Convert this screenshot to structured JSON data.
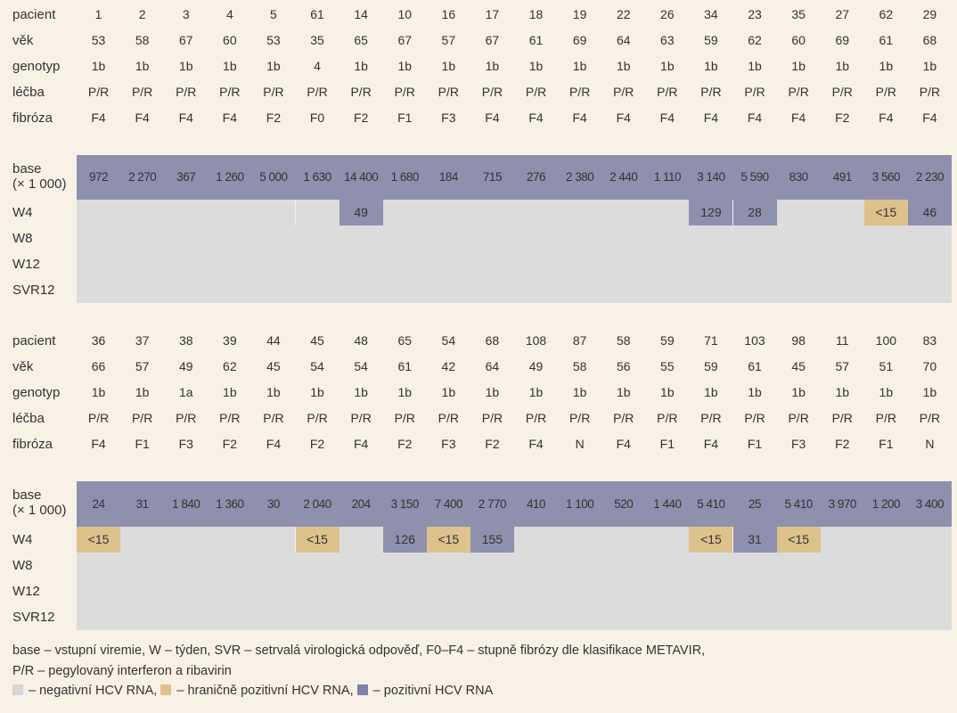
{
  "row_labels": {
    "pacient": "pacient",
    "vek": "věk",
    "genotyp": "genotyp",
    "lecba": "léčba",
    "fibroza": "fibróza",
    "base_1": "base",
    "base_2": "(× 1 000)",
    "w4": "W4",
    "w8": "W8",
    "w12": "W12",
    "svr12": "SVR12"
  },
  "blocks": [
    {
      "pacient": [
        "1",
        "2",
        "3",
        "4",
        "5",
        "61",
        "14",
        "10",
        "16",
        "17",
        "18",
        "19",
        "22",
        "26",
        "34",
        "23",
        "35",
        "27",
        "62",
        "29"
      ],
      "vek": [
        "53",
        "58",
        "67",
        "60",
        "53",
        "35",
        "65",
        "67",
        "57",
        "67",
        "61",
        "69",
        "64",
        "63",
        "59",
        "62",
        "60",
        "69",
        "61",
        "68"
      ],
      "genotyp": [
        "1b",
        "1b",
        "1b",
        "1b",
        "1b",
        "4",
        "1b",
        "1b",
        "1b",
        "1b",
        "1b",
        "1b",
        "1b",
        "1b",
        "1b",
        "1b",
        "1b",
        "1b",
        "1b",
        "1b"
      ],
      "lecba": [
        "P/R",
        "P/R",
        "P/R",
        "P/R",
        "P/R",
        "P/R",
        "P/R",
        "P/R",
        "P/R",
        "P/R",
        "P/R",
        "P/R",
        "P/R",
        "P/R",
        "P/R",
        "P/R",
        "P/R",
        "P/R",
        "P/R",
        "P/R"
      ],
      "fibroza": [
        "F4",
        "F4",
        "F4",
        "F4",
        "F2",
        "F0",
        "F2",
        "F1",
        "F3",
        "F4",
        "F4",
        "F4",
        "F4",
        "F4",
        "F4",
        "F4",
        "F4",
        "F2",
        "F4",
        "F4"
      ],
      "base": [
        "972",
        "2 270",
        "367",
        "1 260",
        "5 000",
        "1 630",
        "14 400",
        "1 680",
        "184",
        "715",
        "276",
        "2 380",
        "2 440",
        "1 110",
        "3 140",
        "5 590",
        "830",
        "491",
        "3 560",
        "2 230"
      ],
      "w4": [
        {
          "s": "neg",
          "v": ""
        },
        {
          "s": "neg",
          "v": ""
        },
        {
          "s": "neg",
          "v": ""
        },
        {
          "s": "neg",
          "v": ""
        },
        {
          "s": "neg",
          "v": ""
        },
        {
          "s": "neg",
          "v": ""
        },
        {
          "s": "pos",
          "v": "49"
        },
        {
          "s": "neg",
          "v": ""
        },
        {
          "s": "neg",
          "v": ""
        },
        {
          "s": "neg",
          "v": ""
        },
        {
          "s": "neg",
          "v": ""
        },
        {
          "s": "neg",
          "v": ""
        },
        {
          "s": "neg",
          "v": ""
        },
        {
          "s": "neg",
          "v": ""
        },
        {
          "s": "pos",
          "v": "129"
        },
        {
          "s": "pos",
          "v": "28"
        },
        {
          "s": "neg",
          "v": ""
        },
        {
          "s": "neg",
          "v": ""
        },
        {
          "s": "bord",
          "v": "<15"
        },
        {
          "s": "pos",
          "v": "46"
        }
      ]
    },
    {
      "pacient": [
        "36",
        "37",
        "38",
        "39",
        "44",
        "45",
        "48",
        "65",
        "54",
        "68",
        "108",
        "87",
        "58",
        "59",
        "71",
        "103",
        "98",
        "11",
        "100",
        "83"
      ],
      "vek": [
        "66",
        "57",
        "49",
        "62",
        "45",
        "54",
        "54",
        "61",
        "42",
        "64",
        "49",
        "58",
        "56",
        "55",
        "59",
        "61",
        "45",
        "57",
        "51",
        "70"
      ],
      "genotyp": [
        "1b",
        "1b",
        "1a",
        "1b",
        "1b",
        "1b",
        "1b",
        "1b",
        "1b",
        "1b",
        "1b",
        "1b",
        "1b",
        "1b",
        "1b",
        "1b",
        "1b",
        "1b",
        "1b",
        "1b"
      ],
      "lecba": [
        "P/R",
        "P/R",
        "P/R",
        "P/R",
        "P/R",
        "P/R",
        "P/R",
        "P/R",
        "P/R",
        "P/R",
        "P/R",
        "P/R",
        "P/R",
        "P/R",
        "P/R",
        "P/R",
        "P/R",
        "P/R",
        "P/R",
        "P/R"
      ],
      "fibroza": [
        "F4",
        "F1",
        "F3",
        "F2",
        "F4",
        "F2",
        "F4",
        "F2",
        "F3",
        "F2",
        "F4",
        "N",
        "F4",
        "F1",
        "F4",
        "F1",
        "F3",
        "F2",
        "F1",
        "N"
      ],
      "base": [
        "24",
        "31",
        "1 840",
        "1 360",
        "30",
        "2 040",
        "204",
        "3 150",
        "7 400",
        "2 770",
        "410",
        "1 100",
        "520",
        "1 440",
        "5 410",
        "25",
        "5 410",
        "3 970",
        "1 200",
        "3 400"
      ],
      "w4": [
        {
          "s": "bord",
          "v": "<15"
        },
        {
          "s": "neg",
          "v": ""
        },
        {
          "s": "neg",
          "v": ""
        },
        {
          "s": "neg",
          "v": ""
        },
        {
          "s": "neg",
          "v": ""
        },
        {
          "s": "bord",
          "v": "<15"
        },
        {
          "s": "neg",
          "v": ""
        },
        {
          "s": "pos",
          "v": "126"
        },
        {
          "s": "bord",
          "v": "<15"
        },
        {
          "s": "pos",
          "v": "155"
        },
        {
          "s": "neg",
          "v": ""
        },
        {
          "s": "neg",
          "v": ""
        },
        {
          "s": "neg",
          "v": ""
        },
        {
          "s": "neg",
          "v": ""
        },
        {
          "s": "bord",
          "v": "<15"
        },
        {
          "s": "pos",
          "v": "31"
        },
        {
          "s": "bord",
          "v": "<15"
        },
        {
          "s": "neg",
          "v": ""
        },
        {
          "s": "neg",
          "v": ""
        },
        {
          "s": "neg",
          "v": ""
        }
      ]
    }
  ],
  "legend": {
    "line1": "base – vstupní viremie, W – týden, SVR – setrvalá virologická odpověď, F0–F4 – stupně fibrózy dle klasifikace METAVIR,",
    "line2": "P/R – pegylovaný interferon a ribavirin",
    "neg_text": " – negativní HCV RNA, ",
    "bord_text": " – hraničně pozitivní HCV RNA, ",
    "pos_text": " – pozitivní HCV RNA"
  },
  "colors": {
    "background": "#f7f1e6",
    "negative": "#dcdcdc",
    "borderline": "#ddc28c",
    "positive": "#8f8fae"
  }
}
